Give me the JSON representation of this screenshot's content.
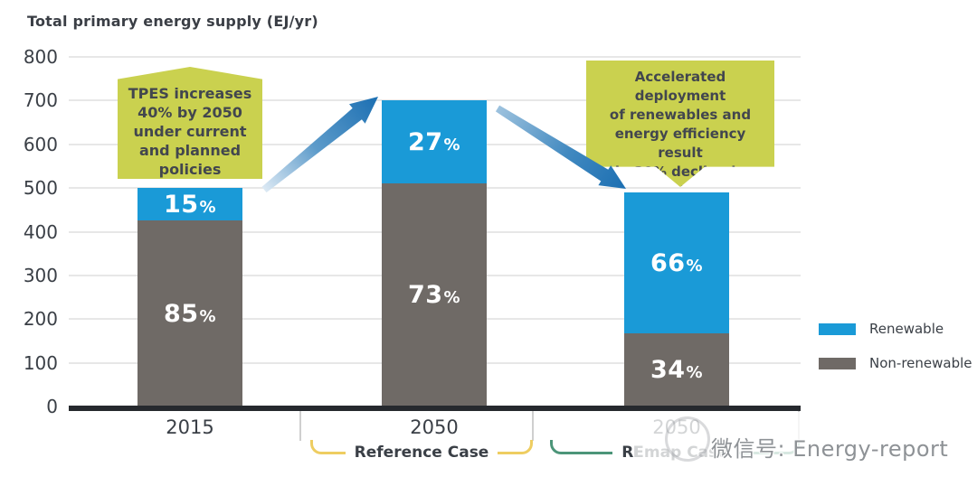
{
  "title": "Total primary energy supply (EJ/yr)",
  "chart_data": {
    "type": "bar",
    "stacked": true,
    "title": "Total primary energy supply (EJ/yr)",
    "ylabel": "",
    "ylim": [
      0,
      800
    ],
    "yticks": [
      0,
      100,
      200,
      300,
      400,
      500,
      600,
      700,
      800
    ],
    "grid": "horizontal",
    "categories": [
      "2015",
      "2050",
      "2050"
    ],
    "totals": [
      500,
      700,
      490
    ],
    "percent_sign": "%",
    "series": [
      {
        "name": "Renewable",
        "color": "#1a9ad7",
        "values": [
          75,
          189,
          323
        ],
        "percents": [
          15,
          27,
          66
        ]
      },
      {
        "name": "Non-renewable",
        "color": "#6f6a66",
        "values": [
          425,
          511,
          167
        ],
        "percents": [
          85,
          73,
          34
        ]
      }
    ],
    "legend_position": "right",
    "groups": [
      {
        "label": "Reference Case",
        "brace_color": "#eecd61"
      },
      {
        "label": "REmap Case",
        "brace_color": "#4c9579"
      }
    ],
    "annotations": [
      {
        "text": "TPES increases\n40% by 2050\nunder current\nand planned\npolicies",
        "shape": "callout-pointing-up",
        "arrow": "up-right"
      },
      {
        "text": "Accelerated deployment\nof renewables and\nenergy efficiency result\nin 30% decline in\nTPES",
        "shape": "callout-pointing-down",
        "arrow": "down-right"
      }
    ]
  },
  "colors": {
    "renewable_blue": "#1a9ad7",
    "non_renewable_gray": "#6f6a66",
    "callout_background": "#cad14f",
    "callout_text": "#42464e",
    "arrow_dark_blue": "#1c6fb2",
    "arrow_light_blue": "#dce9f4",
    "brace_yellow": "#eecd61",
    "brace_green": "#4c9579",
    "axis_black": "#26292e",
    "gridline_gray": "#e7e7e7",
    "text_dark": "#3a3f46",
    "watermark_gray": "#8e9296"
  },
  "watermark": {
    "text": "微信号: Energy-report"
  }
}
